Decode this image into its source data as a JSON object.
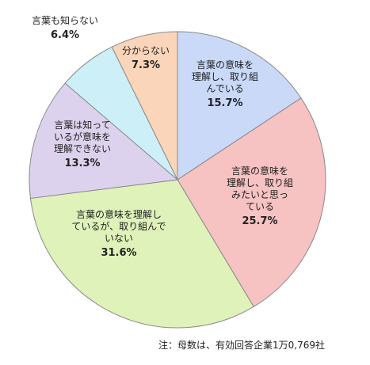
{
  "chart_data": {
    "type": "pie",
    "unit": "%",
    "start_angle_deg": 0,
    "direction": "clockwise",
    "slices": [
      {
        "label_lines": [
          "言葉の意味を",
          "理解し、取り組",
          "んでいる"
        ],
        "value": 15.7,
        "value_text": "15.7%",
        "color": "#c9d9f7"
      },
      {
        "label_lines": [
          "言葉の意味を",
          "理解し、取り組",
          "みたいと思っ",
          "ている"
        ],
        "value": 25.7,
        "value_text": "25.7%",
        "color": "#f7c2c2"
      },
      {
        "label_lines": [
          "言葉の意味を理解し",
          "ているが、取り組んで",
          "いない"
        ],
        "value": 31.6,
        "value_text": "31.6%",
        "color": "#dff2b9"
      },
      {
        "label_lines": [
          "言葉は知って",
          "いるが意味を",
          "理解できない"
        ],
        "value": 13.3,
        "value_text": "13.3%",
        "color": "#ddd2ee"
      },
      {
        "label_lines": [
          "言葉も知らない"
        ],
        "value": 6.4,
        "value_text": "6.4%",
        "color": "#cdeff8"
      },
      {
        "label_lines": [
          "分からない"
        ],
        "value": 7.3,
        "value_text": "7.3%",
        "color": "#fbd5b9"
      }
    ]
  },
  "footnote": "注：母数は、有効回答企業1万0,769社"
}
